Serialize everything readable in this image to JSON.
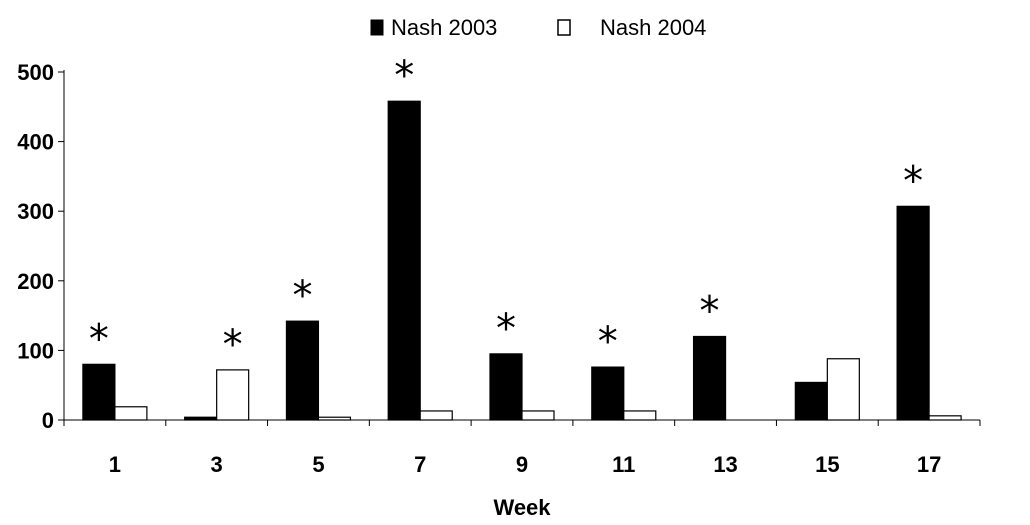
{
  "chart_data": {
    "type": "bar",
    "title": "",
    "xlabel": "Week",
    "ylabel": "",
    "ylim": [
      0,
      500
    ],
    "yticks": [
      0,
      100,
      200,
      300,
      400,
      500
    ],
    "categories": [
      "1",
      "3",
      "5",
      "7",
      "9",
      "11",
      "13",
      "15",
      "17"
    ],
    "series": [
      {
        "name": "Nash 2003",
        "color": "#000000",
        "fill": "solid",
        "values": [
          80,
          4,
          142,
          458,
          95,
          76,
          120,
          54,
          307
        ]
      },
      {
        "name": "Nash 2004",
        "color": "#ffffff",
        "fill": "outline",
        "values": [
          19,
          72,
          4,
          13,
          13,
          13,
          0,
          88,
          6
        ]
      }
    ],
    "annotations": {
      "marker": "*",
      "weeks": [
        {
          "category": "1",
          "series": "Nash 2003"
        },
        {
          "category": "3",
          "series": "Nash 2004"
        },
        {
          "category": "5",
          "series": "Nash 2003"
        },
        {
          "category": "7",
          "series": "Nash 2003"
        },
        {
          "category": "9",
          "series": "Nash 2003"
        },
        {
          "category": "11",
          "series": "Nash 2003"
        },
        {
          "category": "13",
          "series": "Nash 2003"
        },
        {
          "category": "17",
          "series": "Nash 2003"
        }
      ]
    },
    "legend": "top-center",
    "grid": false
  }
}
